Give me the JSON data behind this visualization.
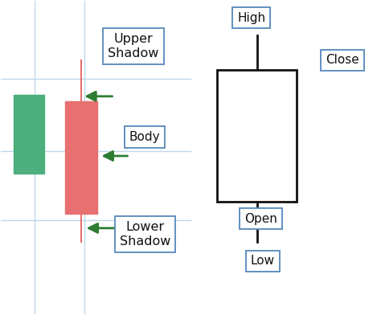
{
  "bg_color": "#ffffff",
  "grid_line_color": "#b0d0e8",
  "grid_line_alpha": 0.8,
  "candle_green_color": "#4caf7d",
  "candle_red_color": "#e87070",
  "big_candle_fill": "#ffffff",
  "big_candle_outline": "#111111",
  "arrow_color": "#2e7d32",
  "label_box_edge": "#5588bb",
  "label_box_face": "#ffffff",
  "label_text_color": "#111111",
  "label_fontsize": 10.5,
  "big_label_fontsize": 11,
  "upper_shadow_label": "Upper\nShadow",
  "body_label": "Body",
  "lower_shadow_label": "Lower\nShadow",
  "high_label": "High",
  "close_label": "Close",
  "open_label": "Open",
  "low_label": "Low"
}
